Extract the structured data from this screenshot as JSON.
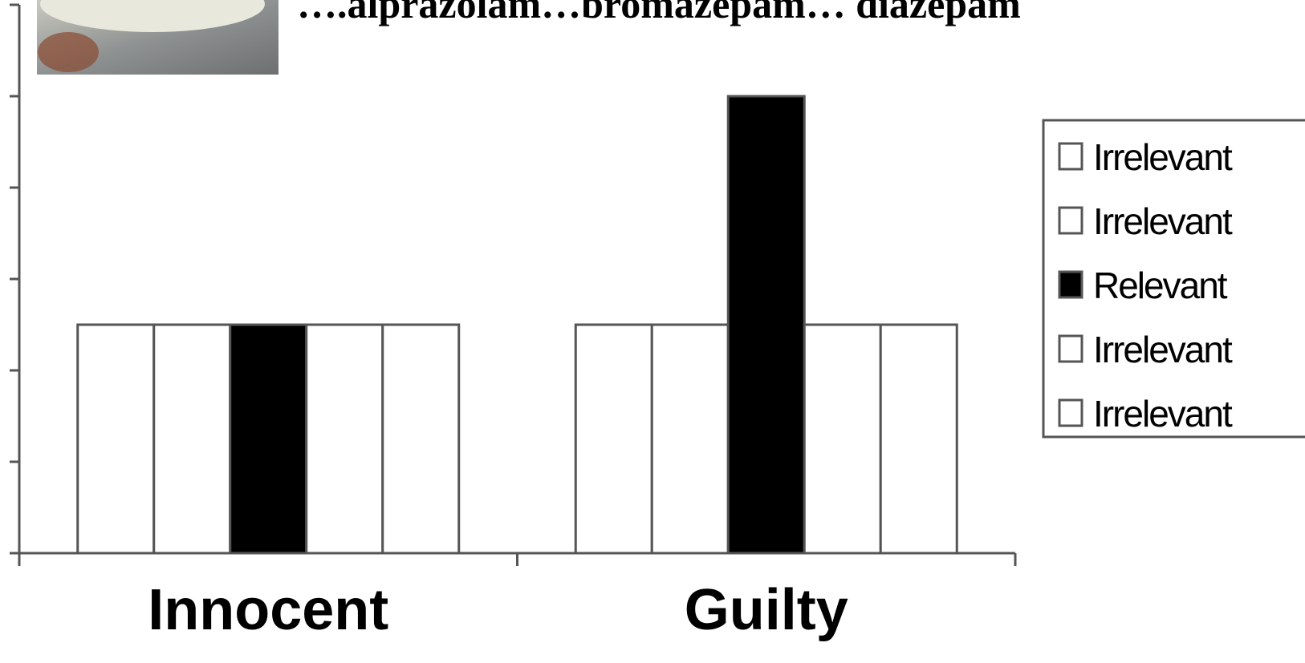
{
  "chart_data": {
    "type": "bar",
    "title": "….alprazolam…bromazepam… diazepam",
    "categories": [
      "Innocent",
      "Guilty"
    ],
    "series": [
      {
        "name": "Irrelevant",
        "color": "#ffffff",
        "values": [
          2.5,
          2.5
        ]
      },
      {
        "name": "Irrelevant",
        "color": "#ffffff",
        "values": [
          2.5,
          2.5
        ]
      },
      {
        "name": "Relevant",
        "color": "#000000",
        "values": [
          2.5,
          5
        ]
      },
      {
        "name": "Irrelevant",
        "color": "#ffffff",
        "values": [
          2.5,
          2.5
        ]
      },
      {
        "name": "Irrelevant",
        "color": "#ffffff",
        "values": [
          2.5,
          2.5
        ]
      }
    ],
    "ylim": [
      0,
      6
    ],
    "yticks": [
      0,
      1,
      2,
      3,
      4,
      5,
      6
    ],
    "legend": "right"
  }
}
